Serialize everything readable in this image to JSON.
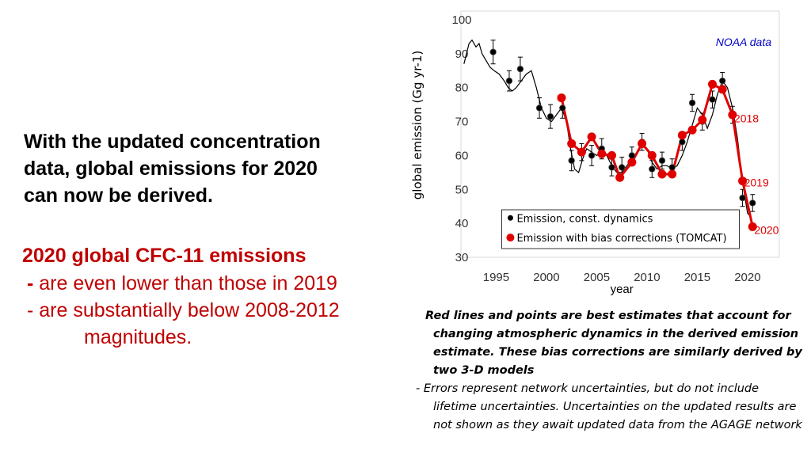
{
  "lead": {
    "line1": "With the updated concentration",
    "line2": "data, global emissions for 2020",
    "line3": "can now be derived."
  },
  "summary": {
    "title": "2020 global CFC-11 emissions",
    "bullet1_dash": "-",
    "bullet1": "are even lower than those in 2019",
    "bullet2": "- are substantially below 2008-2012",
    "bullet2_cont": "magnitudes."
  },
  "notes": {
    "note1": "Red lines and points are best estimates that account for changing atmospheric dynamics in the derived emission estimate. These bias corrections are similarly derived by two 3-D models",
    "note2": "- Errors represent network uncertainties, but do not include lifetime uncertainties.  Uncertainties on the updated results are not shown as they await updated data from the AGAGE network"
  },
  "colors": {
    "red": "#e00000",
    "dark_red": "#c00000",
    "black": "#000000",
    "blue": "#0000cc"
  },
  "chart_data": {
    "type": "line",
    "xlabel": "year",
    "ylabel": "global emission (Gg yr-1)",
    "xlim": [
      1991.5,
      2023
    ],
    "ylim": [
      30,
      100
    ],
    "x_ticks": [
      1995,
      2000,
      2005,
      2010,
      2015,
      2020
    ],
    "y_ticks": [
      30,
      40,
      50,
      60,
      70,
      80,
      90,
      100
    ],
    "source_label": "NOAA data",
    "legend": [
      {
        "name": "Emission, const. dynamics",
        "marker": "black-dot"
      },
      {
        "name": "Emission with bias corrections (TOMCAT)",
        "marker": "red-dot"
      }
    ],
    "annotations": [
      {
        "text": "2018",
        "x": 2018,
        "y": 71
      },
      {
        "text": "2019",
        "x": 2019,
        "y": 52
      },
      {
        "text": "2020",
        "x": 2020,
        "y": 38
      }
    ],
    "series": [
      {
        "name": "Emission, const. dynamics (continuous)",
        "points": [
          [
            1991.8,
            87
          ],
          [
            1992.3,
            93
          ],
          [
            1992.6,
            94
          ],
          [
            1993,
            92
          ],
          [
            1993.3,
            93
          ],
          [
            1993.6,
            90
          ],
          [
            1994,
            88
          ],
          [
            1994.4,
            86
          ],
          [
            1994.8,
            85
          ],
          [
            1995.3,
            84
          ],
          [
            1995.8,
            82
          ],
          [
            1996.2,
            80
          ],
          [
            1996.6,
            79
          ],
          [
            1997,
            80
          ],
          [
            1997.5,
            82
          ],
          [
            1998,
            84
          ],
          [
            1998.5,
            85
          ],
          [
            1999,
            80
          ],
          [
            1999.5,
            74
          ],
          [
            2000,
            71
          ],
          [
            2000.5,
            70
          ],
          [
            2001,
            72
          ],
          [
            2001.5,
            74
          ],
          [
            2002,
            70
          ],
          [
            2002.4,
            62
          ],
          [
            2002.8,
            56
          ],
          [
            2003.2,
            55
          ],
          [
            2003.6,
            59
          ],
          [
            2004,
            62
          ],
          [
            2004.5,
            61
          ],
          [
            2005,
            60
          ],
          [
            2005.5,
            61
          ],
          [
            2006,
            60
          ],
          [
            2006.5,
            57
          ],
          [
            2007,
            55
          ],
          [
            2007.5,
            55
          ],
          [
            2008,
            57
          ],
          [
            2008.5,
            59
          ],
          [
            2009,
            61
          ],
          [
            2009.5,
            63
          ],
          [
            2010,
            62
          ],
          [
            2010.5,
            58
          ],
          [
            2011,
            56
          ],
          [
            2011.5,
            57
          ],
          [
            2012,
            57
          ],
          [
            2012.5,
            56
          ],
          [
            2013,
            57
          ],
          [
            2013.5,
            60
          ],
          [
            2014,
            64
          ],
          [
            2014.5,
            69
          ],
          [
            2015,
            74
          ],
          [
            2015.5,
            72
          ],
          [
            2016,
            68
          ],
          [
            2016.5,
            72
          ],
          [
            2017,
            78
          ],
          [
            2017.5,
            82
          ],
          [
            2018,
            80
          ],
          [
            2018.5,
            74
          ],
          [
            2019,
            65
          ],
          [
            2019.5,
            52
          ],
          [
            2020,
            43
          ],
          [
            2020.3,
            42
          ]
        ]
      },
      {
        "name": "Emission, const. dynamics",
        "points": [
          [
            1994.7,
            90.5
          ],
          [
            1996.3,
            82
          ],
          [
            1997.4,
            85.5
          ],
          [
            1999.3,
            74
          ],
          [
            2000.4,
            71.5
          ],
          [
            2001.6,
            74
          ],
          [
            2002.5,
            58.5
          ],
          [
            2003.5,
            61
          ],
          [
            2004.5,
            60
          ],
          [
            2005.5,
            62
          ],
          [
            2006.5,
            56.5
          ],
          [
            2007.5,
            56.5
          ],
          [
            2008.5,
            60
          ],
          [
            2009.5,
            64
          ],
          [
            2010.5,
            56
          ],
          [
            2011.5,
            58.5
          ],
          [
            2012.5,
            56.5
          ],
          [
            2013.5,
            64
          ],
          [
            2014.5,
            75.5
          ],
          [
            2015.5,
            70
          ],
          [
            2016.5,
            76.5
          ],
          [
            2017.5,
            82
          ],
          [
            2018.5,
            72
          ],
          [
            2019.5,
            47.5
          ],
          [
            2020.5,
            46
          ]
        ],
        "errors": [
          3.5,
          3,
          3.5,
          3,
          3.5,
          3,
          3,
          2.5,
          3,
          3,
          2.5,
          3,
          2.5,
          2.5,
          2.5,
          2.5,
          2.5,
          2.5,
          2.5,
          2.5,
          2.5,
          2.5,
          2.5,
          2.5,
          2.5
        ]
      },
      {
        "name": "Emission with bias corrections (TOMCAT)",
        "points": [
          [
            2001.5,
            77
          ],
          [
            2002.5,
            63.5
          ],
          [
            2003.5,
            61
          ],
          [
            2004.5,
            65.5
          ],
          [
            2005.5,
            60.5
          ],
          [
            2006.5,
            60
          ],
          [
            2007.3,
            53.5
          ],
          [
            2008.5,
            58
          ],
          [
            2009.5,
            63.5
          ],
          [
            2010.5,
            60
          ],
          [
            2011.5,
            54.5
          ],
          [
            2012.5,
            54.5
          ],
          [
            2013.5,
            66
          ],
          [
            2014.5,
            67.5
          ],
          [
            2015.5,
            70.5
          ],
          [
            2016.5,
            81
          ],
          [
            2017.5,
            79.5
          ],
          [
            2018.5,
            72
          ],
          [
            2019.5,
            52.5
          ],
          [
            2020.5,
            39
          ]
        ]
      }
    ]
  }
}
